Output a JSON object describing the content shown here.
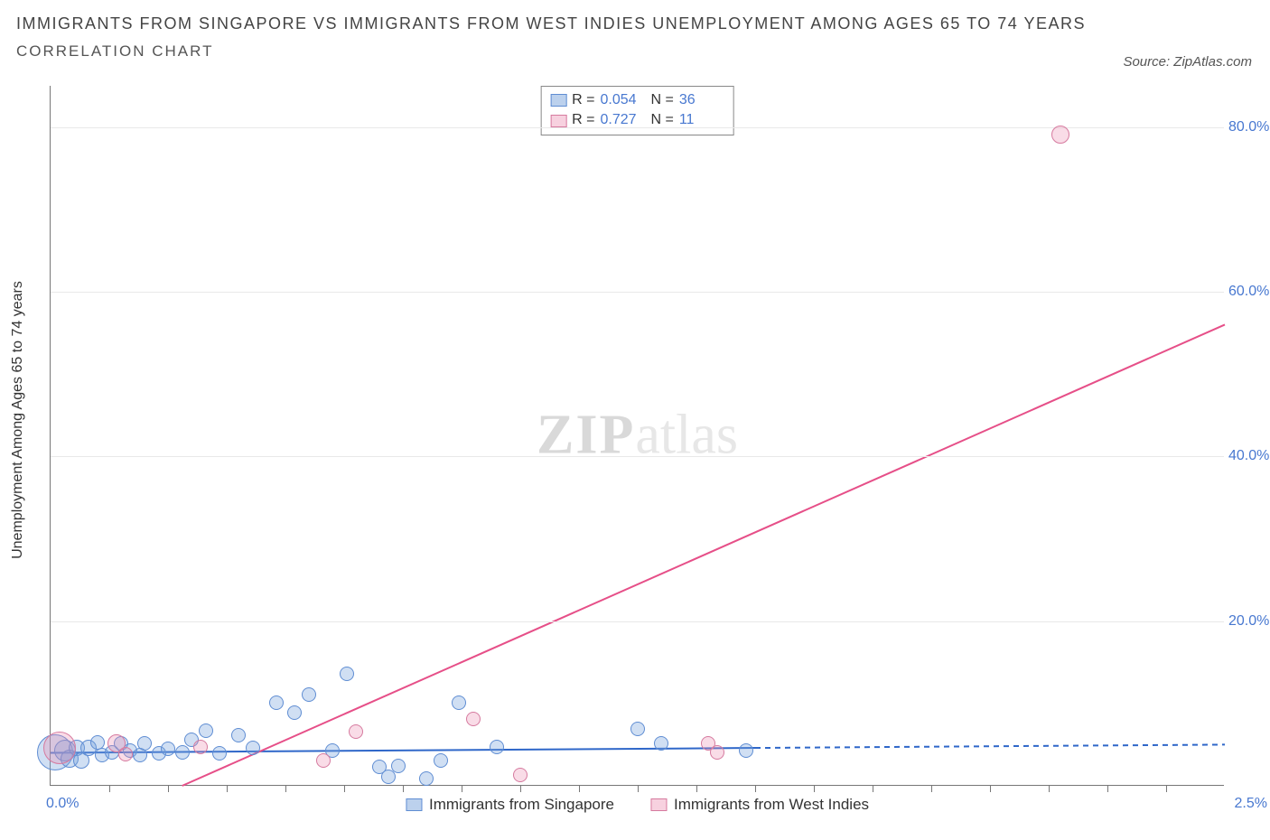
{
  "title": "IMMIGRANTS FROM SINGAPORE VS IMMIGRANTS FROM WEST INDIES UNEMPLOYMENT AMONG AGES 65 TO 74 YEARS",
  "subtitle": "CORRELATION CHART",
  "source": "Source: ZipAtlas.com",
  "y_axis_label": "Unemployment Among Ages 65 to 74 years",
  "watermark_zip": "ZIP",
  "watermark_atlas": "atlas",
  "chart": {
    "type": "scatter",
    "background_color": "#ffffff",
    "grid_color": "#e9e9e9",
    "axis_color": "#777777",
    "tick_label_color": "#4878d0",
    "xlim": [
      0,
      2.5
    ],
    "ylim": [
      0,
      85
    ],
    "y_ticks": [
      {
        "v": 20,
        "label": "20.0%"
      },
      {
        "v": 40,
        "label": "40.0%"
      },
      {
        "v": 60,
        "label": "60.0%"
      },
      {
        "v": 80,
        "label": "80.0%"
      }
    ],
    "x_tick_positions": [
      0.125,
      0.25,
      0.375,
      0.5,
      0.625,
      0.75,
      0.875,
      1.0,
      1.125,
      1.25,
      1.375,
      1.5,
      1.625,
      1.75,
      1.875,
      2.0,
      2.125,
      2.25,
      2.375
    ],
    "x_start_label": "0.0%",
    "x_end_label": "2.5%"
  },
  "series": [
    {
      "key": "singapore",
      "label": "Immigrants from Singapore",
      "color_fill": "rgba(121,163,220,0.35)",
      "color_stroke": "#5f8dd3",
      "R": "0.054",
      "N": "36",
      "trend": {
        "x1": 0.0,
        "y1": 4.0,
        "x2": 1.5,
        "y2": 4.6,
        "dash_to_x": 2.5,
        "color": "#2f67c9",
        "width": 2
      },
      "points": [
        {
          "x": 0.01,
          "y": 4.0,
          "r": 20
        },
        {
          "x": 0.03,
          "y": 4.2,
          "r": 12
        },
        {
          "x": 0.04,
          "y": 3.2,
          "r": 10
        },
        {
          "x": 0.055,
          "y": 4.5,
          "r": 9
        },
        {
          "x": 0.065,
          "y": 3.0,
          "r": 9
        },
        {
          "x": 0.08,
          "y": 4.5,
          "r": 9
        },
        {
          "x": 0.1,
          "y": 5.2,
          "r": 8
        },
        {
          "x": 0.11,
          "y": 3.6,
          "r": 8
        },
        {
          "x": 0.13,
          "y": 4.0,
          "r": 8
        },
        {
          "x": 0.15,
          "y": 5.0,
          "r": 8
        },
        {
          "x": 0.17,
          "y": 4.2,
          "r": 8
        },
        {
          "x": 0.19,
          "y": 3.6,
          "r": 8
        },
        {
          "x": 0.2,
          "y": 5.0,
          "r": 8
        },
        {
          "x": 0.23,
          "y": 3.8,
          "r": 8
        },
        {
          "x": 0.25,
          "y": 4.4,
          "r": 8
        },
        {
          "x": 0.28,
          "y": 4.0,
          "r": 8
        },
        {
          "x": 0.3,
          "y": 5.5,
          "r": 8
        },
        {
          "x": 0.33,
          "y": 6.6,
          "r": 8
        },
        {
          "x": 0.36,
          "y": 3.8,
          "r": 8
        },
        {
          "x": 0.4,
          "y": 6.0,
          "r": 8
        },
        {
          "x": 0.43,
          "y": 4.5,
          "r": 8
        },
        {
          "x": 0.48,
          "y": 10.0,
          "r": 8
        },
        {
          "x": 0.52,
          "y": 8.8,
          "r": 8
        },
        {
          "x": 0.55,
          "y": 11.0,
          "r": 8
        },
        {
          "x": 0.6,
          "y": 4.2,
          "r": 8
        },
        {
          "x": 0.63,
          "y": 13.5,
          "r": 8
        },
        {
          "x": 0.7,
          "y": 2.2,
          "r": 8
        },
        {
          "x": 0.72,
          "y": 1.0,
          "r": 8
        },
        {
          "x": 0.74,
          "y": 2.3,
          "r": 8
        },
        {
          "x": 0.8,
          "y": 0.8,
          "r": 8
        },
        {
          "x": 0.83,
          "y": 3.0,
          "r": 8
        },
        {
          "x": 0.87,
          "y": 10.0,
          "r": 8
        },
        {
          "x": 0.95,
          "y": 4.6,
          "r": 8
        },
        {
          "x": 1.25,
          "y": 6.8,
          "r": 8
        },
        {
          "x": 1.3,
          "y": 5.0,
          "r": 8
        },
        {
          "x": 1.48,
          "y": 4.2,
          "r": 8
        }
      ]
    },
    {
      "key": "westindies",
      "label": "Immigrants from West Indies",
      "color_fill": "rgba(236,140,175,0.3)",
      "color_stroke": "#d67a9f",
      "R": "0.727",
      "N": "11",
      "trend": {
        "x1": 0.28,
        "y1": 0.0,
        "x2": 2.5,
        "y2": 56.0,
        "color": "#e64f88",
        "width": 2
      },
      "points": [
        {
          "x": 0.02,
          "y": 4.5,
          "r": 18
        },
        {
          "x": 0.14,
          "y": 5.0,
          "r": 10
        },
        {
          "x": 0.16,
          "y": 3.7,
          "r": 8
        },
        {
          "x": 0.32,
          "y": 4.6,
          "r": 8
        },
        {
          "x": 0.58,
          "y": 3.0,
          "r": 8
        },
        {
          "x": 0.65,
          "y": 6.5,
          "r": 8
        },
        {
          "x": 0.9,
          "y": 8.0,
          "r": 8
        },
        {
          "x": 1.0,
          "y": 1.2,
          "r": 8
        },
        {
          "x": 1.4,
          "y": 5.0,
          "r": 8
        },
        {
          "x": 1.42,
          "y": 4.0,
          "r": 8
        },
        {
          "x": 2.15,
          "y": 79.0,
          "r": 10
        }
      ]
    }
  ],
  "stats_box": {
    "R_label": "R =",
    "N_label": "N ="
  }
}
